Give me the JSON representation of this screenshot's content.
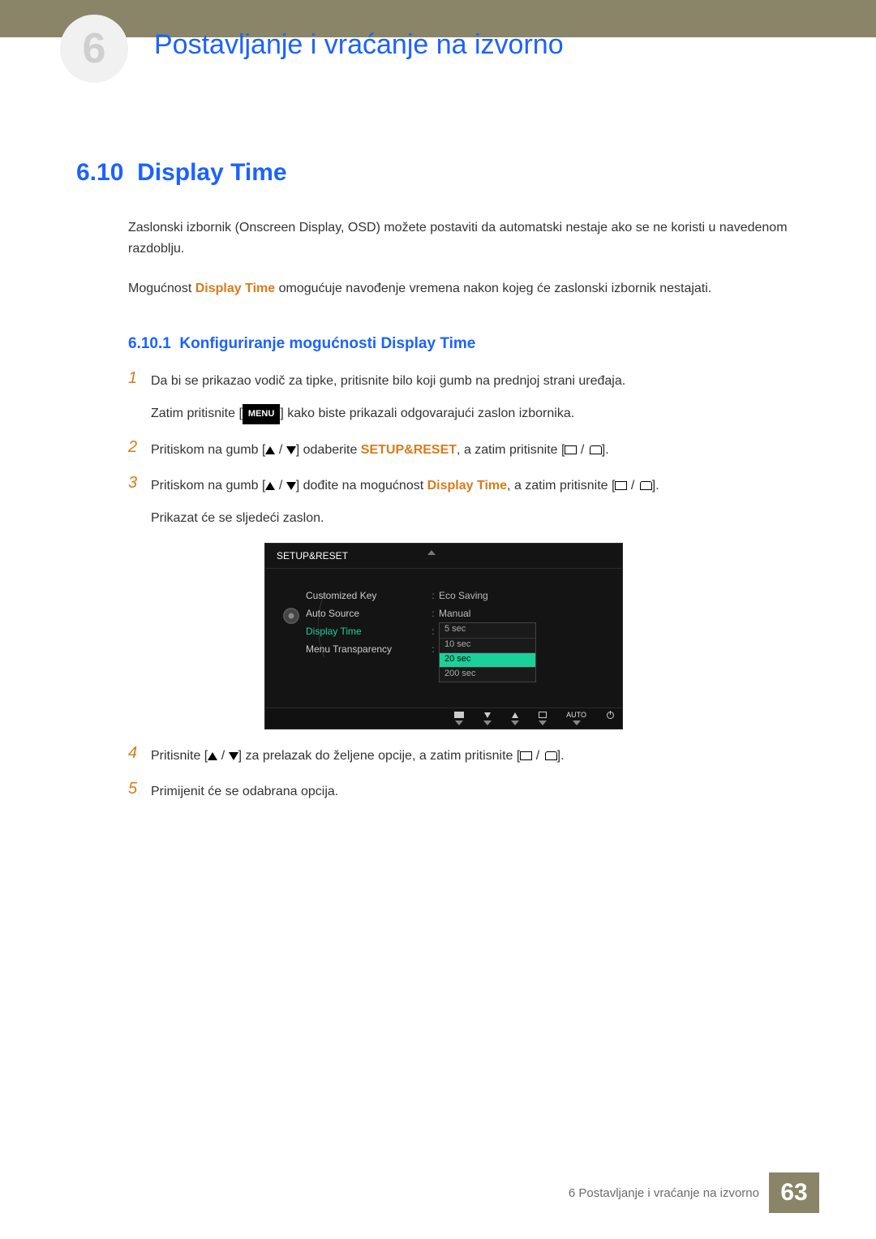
{
  "colors": {
    "accent_blue": "#1c62ff",
    "accent_orange": "#d97b1a",
    "bar_olive": "#8a8568",
    "osd_green": "#1bd19a"
  },
  "chapter": {
    "number": "6",
    "title": "Postavljanje i vraćanje na izvorno"
  },
  "section": {
    "number": "6.10",
    "title": "Display Time",
    "para1": "Zaslonski izbornik (Onscreen Display, OSD) možete postaviti da automatski nestaje ako se ne koristi u navedenom razdoblju.",
    "para2_pre": "Mogućnost ",
    "para2_hl": "Display Time",
    "para2_post": " omogućuje navođenje vremena nakon kojeg će zaslonski izbornik nestajati."
  },
  "subsection": {
    "number": "6.10.1",
    "title": "Konfiguriranje mogućnosti Display Time"
  },
  "menu_label": "MENU",
  "steps": {
    "s1": {
      "n": "1",
      "t1": "Da bi se prikazao vodič za tipke, pritisnite bilo koji gumb na prednjoj strani uređaja.",
      "t2_pre": "Zatim pritisnite [",
      "t2_post": "] kako biste prikazali odgovarajući zaslon izbornika."
    },
    "s2": {
      "n": "2",
      "pre": "Pritiskom na gumb [",
      "mid": "] odaberite ",
      "hl": "SETUP&RESET",
      "post": ", a zatim pritisnite ["
    },
    "s3": {
      "n": "3",
      "pre": "Pritiskom na gumb [",
      "mid": "] dođite na mogućnost ",
      "hl": "Display Time",
      "post": ", a zatim pritisnite [",
      "after": "Prikazat će se sljedeći zaslon."
    },
    "s4": {
      "n": "4",
      "pre": "Pritisnite [",
      "mid": "] za prelazak do željene opcije, a zatim pritisnite ["
    },
    "s5": {
      "n": "5",
      "t": "Primijenit će se odabrana opcija."
    }
  },
  "osd": {
    "title": "SETUP&RESET",
    "rows": [
      {
        "label": "Customized Key",
        "value": "Eco Saving",
        "active": false
      },
      {
        "label": "Auto Source",
        "value": "Manual",
        "active": false
      },
      {
        "label": "Display Time",
        "value": "",
        "active": true
      },
      {
        "label": "Menu Transparency",
        "value": "",
        "active": false
      }
    ],
    "options": [
      {
        "label": "5 sec",
        "selected": false
      },
      {
        "label": "10 sec",
        "selected": false
      },
      {
        "label": "20 sec",
        "selected": true
      },
      {
        "label": "200 sec",
        "selected": false
      }
    ],
    "footer_auto": "AUTO"
  },
  "footer": {
    "text": "6 Postavljanje i vraćanje na izvorno",
    "page": "63"
  }
}
